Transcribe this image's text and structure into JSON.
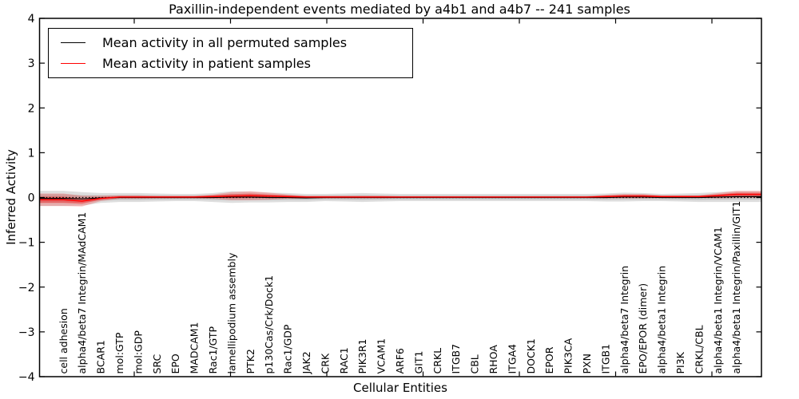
{
  "chart_data": {
    "type": "line",
    "title": "Paxillin-independent events mediated by a4b1 and a4b7 -- 241 samples",
    "xlabel": "Cellular Entities",
    "ylabel": "Inferred Activity",
    "ylim": [
      -4,
      4
    ],
    "yticks": [
      -4,
      -3,
      -2,
      -1,
      0,
      1,
      2,
      3,
      4
    ],
    "grid": false,
    "legend_position": "upper left",
    "zero_line_style": "dotted",
    "categories": [
      "cell adhesion",
      "alpha4/beta7 Integrin/MAdCAM1",
      "BCAR1",
      "mol:GTP",
      "mol:GDP",
      "SRC",
      "EPO",
      "MADCAM1",
      "Rac1/GTP",
      "lamellipodium assembly",
      "PTK2",
      "p130Cas/Crk/Dock1",
      "Rac1/GDP",
      "JAK2",
      "CRK",
      "RAC1",
      "PIK3R1",
      "VCAM1",
      "ARF6",
      "GIT1",
      "CRKL",
      "ITGB7",
      "CBL",
      "RHOA",
      "ITGA4",
      "DOCK1",
      "EPOR",
      "PIK3CA",
      "PXN",
      "ITGB1",
      "alpha4/beta7 Integrin",
      "EPO/EPOR (dimer)",
      "alpha4/beta1 Integrin",
      "PI3K",
      "CRKL/CBL",
      "alpha4/beta1 Integrin/VCAM1",
      "alpha4/beta1 Integrin/Paxillin/GIT1"
    ],
    "series": [
      {
        "name": "Mean activity in all permuted samples",
        "color": "#000000",
        "values": [
          -0.02,
          -0.03,
          -0.01,
          0,
          0,
          0,
          0,
          0,
          0,
          0.01,
          0.01,
          0,
          0,
          -0.01,
          0,
          0,
          0,
          0,
          0,
          0,
          0,
          0,
          0,
          0,
          0,
          0,
          0,
          0,
          0,
          0,
          0.01,
          0.01,
          0,
          0,
          0,
          0.01,
          0.02
        ],
        "band_halfwidth": [
          0.17,
          0.15,
          0.11,
          0.1,
          0.1,
          0.09,
          0.08,
          0.08,
          0.1,
          0.13,
          0.12,
          0.11,
          0.1,
          0.09,
          0.08,
          0.09,
          0.1,
          0.09,
          0.08,
          0.08,
          0.08,
          0.08,
          0.08,
          0.08,
          0.08,
          0.08,
          0.08,
          0.08,
          0.08,
          0.09,
          0.1,
          0.09,
          0.08,
          0.09,
          0.1,
          0.11,
          0.12
        ]
      },
      {
        "name": "Mean activity in patient samples",
        "color": "#ff0000",
        "values": [
          -0.05,
          -0.08,
          -0.02,
          0.01,
          0.01,
          0.01,
          0.01,
          0.01,
          0.02,
          0.03,
          0.04,
          0.03,
          0.02,
          0.01,
          0.01,
          0.01,
          0.01,
          0.01,
          0.01,
          0.01,
          0.01,
          0.01,
          0.01,
          0.01,
          0.01,
          0.01,
          0.01,
          0.01,
          0.01,
          0.02,
          0.03,
          0.03,
          0.02,
          0.02,
          0.02,
          0.04,
          0.07
        ],
        "band_halfwidth": [
          0.14,
          0.12,
          0.06,
          0.04,
          0.04,
          0.03,
          0.03,
          0.03,
          0.05,
          0.09,
          0.1,
          0.08,
          0.05,
          0.03,
          0.03,
          0.03,
          0.03,
          0.03,
          0.02,
          0.02,
          0.02,
          0.02,
          0.02,
          0.02,
          0.02,
          0.02,
          0.02,
          0.02,
          0.02,
          0.04,
          0.05,
          0.05,
          0.03,
          0.03,
          0.03,
          0.06,
          0.08
        ]
      }
    ]
  }
}
